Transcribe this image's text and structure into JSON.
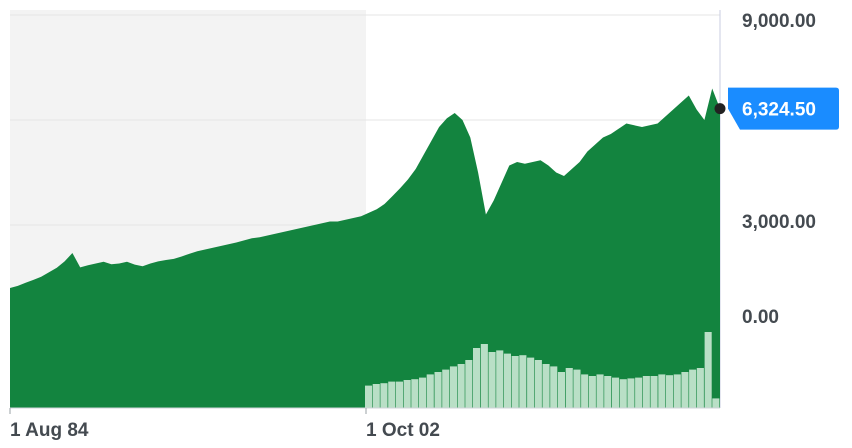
{
  "chart_data": {
    "type": "area",
    "title": "",
    "xlabel": "",
    "ylabel": "",
    "y_ticks": [
      "9,000.00",
      "3,000.00",
      "0.00"
    ],
    "x_ticks": [
      "1 Aug 84",
      "1 Oct 02"
    ],
    "ylim": [
      0,
      9000
    ],
    "last_value_label": "6,324.50",
    "grid": true,
    "shaded_region": "1 Aug 84 to 1 Oct 02",
    "colors": {
      "area": "#13843f",
      "volume": "#b9dfc6",
      "shade": "#f3f3f3",
      "grid": "#e6e6e6",
      "badge": "#1a8cff",
      "marker": "#222222"
    },
    "series": [
      {
        "values": [
          1200,
          1260,
          1350,
          1430,
          1520,
          1650,
          1780,
          1960,
          2200,
          1790,
          1850,
          1900,
          1950,
          1880,
          1900,
          1950,
          1870,
          1820,
          1900,
          1960,
          2000,
          2030,
          2100,
          2180,
          2250,
          2300,
          2350,
          2400,
          2450,
          2500,
          2560,
          2620,
          2650,
          2700,
          2750,
          2800,
          2850,
          2900,
          2950,
          3000,
          3050,
          3100,
          3100,
          3150,
          3200,
          3250,
          3350,
          3450,
          3600,
          3820,
          4050,
          4300,
          4600,
          5000,
          5400,
          5800,
          6050,
          6200,
          6000,
          5500,
          4500,
          3300,
          3700,
          4200,
          4700,
          4800,
          4750,
          4800,
          4850,
          4700,
          4500,
          4400,
          4600,
          4800,
          5100,
          5300,
          5500,
          5600,
          5750,
          5900,
          5850,
          5800,
          5850,
          5900,
          6100,
          6300,
          6500,
          6700,
          6300,
          6000,
          6900,
          6324.5
        ]
      }
    ],
    "volume": [
      0,
      0,
      0,
      0,
      0,
      0,
      0,
      0,
      0,
      0,
      0,
      0,
      0,
      0,
      0,
      0,
      0,
      0,
      0,
      0,
      0,
      0,
      0,
      0,
      0,
      0,
      0,
      0,
      0,
      0,
      0,
      0,
      0,
      0,
      0,
      0,
      0,
      0,
      0,
      0,
      0,
      0,
      0,
      0,
      0,
      0,
      0.28,
      0.3,
      0.31,
      0.33,
      0.33,
      0.35,
      0.36,
      0.38,
      0.42,
      0.45,
      0.48,
      0.52,
      0.55,
      0.6,
      0.75,
      0.8,
      0.7,
      0.72,
      0.68,
      0.65,
      0.66,
      0.63,
      0.6,
      0.55,
      0.52,
      0.45,
      0.5,
      0.48,
      0.42,
      0.4,
      0.42,
      0.4,
      0.38,
      0.36,
      0.37,
      0.38,
      0.4,
      0.4,
      0.42,
      0.41,
      0.42,
      0.45,
      0.48,
      0.5,
      0.95,
      0.12
    ]
  }
}
